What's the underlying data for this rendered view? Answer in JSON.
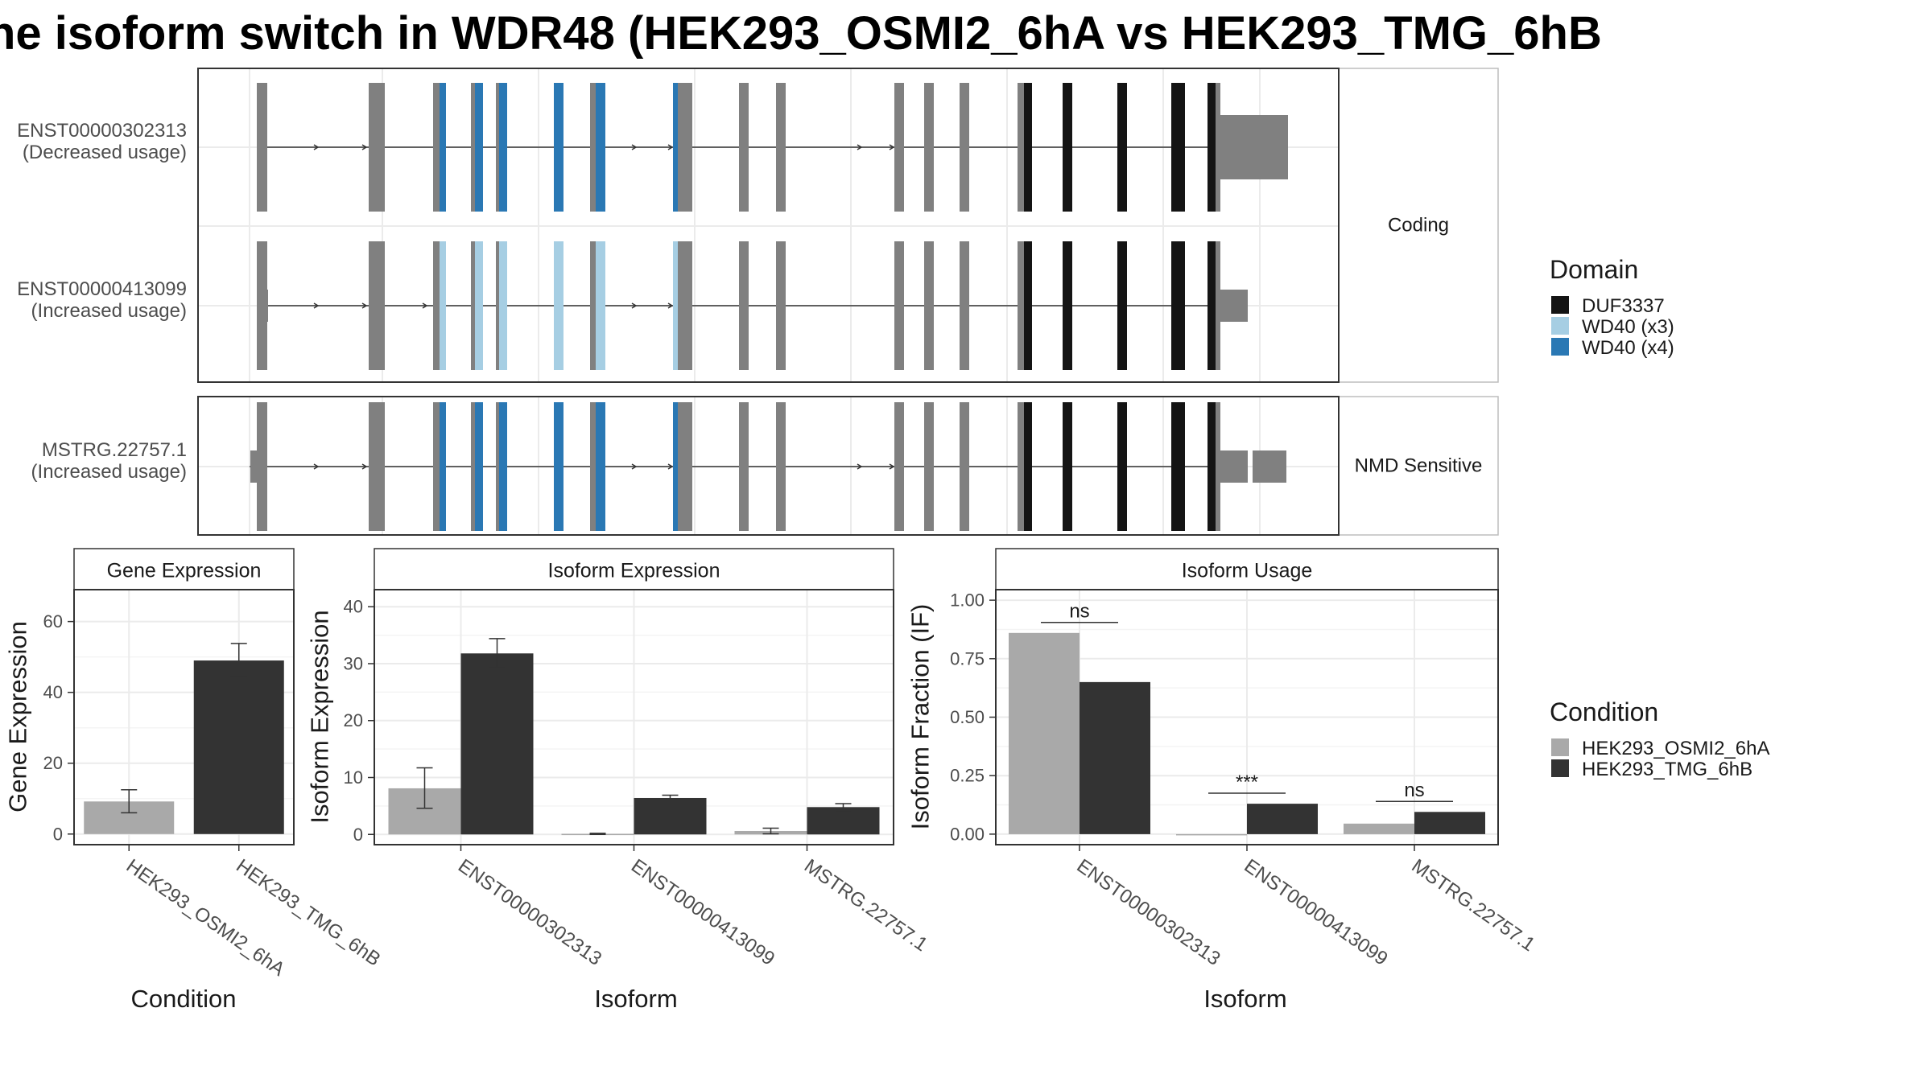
{
  "title": "he isoform switch in WDR48 (HEK293_OSMI2_6hA vs HEK293_TMG_6hB",
  "colors": {
    "utr": "#808080",
    "duf3337": "#141414",
    "wd40_x3": "#a6cee3",
    "wd40_x4": "#2a78b4",
    "cond_a": "#a9a9a9",
    "cond_b": "#333333",
    "panel_border": "#333333",
    "strip_border": "#bdbdbd",
    "grid": "#ebebeb"
  },
  "transcript_panels": [
    {
      "facet_label": "Coding",
      "tracks": [
        {
          "id": "ENST00000302313",
          "usage": "(Decreased usage)"
        },
        {
          "id": "ENST00000413099",
          "usage": "(Increased usage)"
        }
      ]
    },
    {
      "facet_label": "NMD Sensitive",
      "tracks": [
        {
          "id": "MSTRG.22757.1",
          "usage": "(Increased usage)"
        }
      ]
    }
  ],
  "domain_legend": {
    "title": "Domain",
    "items": [
      {
        "label": "DUF3337",
        "color": "#141414"
      },
      {
        "label": "WD40 (x3)",
        "color": "#a6cee3"
      },
      {
        "label": "WD40 (x4)",
        "color": "#2a78b4"
      }
    ]
  },
  "condition_legend": {
    "title": "Condition",
    "items": [
      {
        "label": "HEK293_OSMI2_6hA",
        "color": "#a9a9a9"
      },
      {
        "label": "HEK293_TMG_6hB",
        "color": "#333333"
      }
    ]
  },
  "chart_data": [
    {
      "type": "bar",
      "title": "Gene Expression",
      "xlabel": "Condition",
      "ylabel": "Gene Expression",
      "categories": [
        "HEK293_OSMI2_6hA",
        "HEK293_TMG_6hB"
      ],
      "values": [
        9.2,
        49.0
      ],
      "errors": [
        [
          6.0,
          12.5
        ],
        [
          44.5,
          53.8
        ]
      ],
      "colors": [
        "#a9a9a9",
        "#333333"
      ],
      "ylim": [
        -3,
        69
      ],
      "yticks": [
        0,
        20,
        40,
        60
      ],
      "ytick_labels": [
        "0",
        "20",
        "40",
        "60"
      ],
      "grid": true
    },
    {
      "type": "bar",
      "title": "Isoform Expression",
      "xlabel": "Isoform",
      "ylabel": "Isoform Expression",
      "categories": [
        "ENST00000302313",
        "ENST00000413099",
        "MSTRG.22757.1"
      ],
      "series": [
        {
          "name": "HEK293_OSMI2_6hA",
          "values": [
            8.1,
            0.1,
            0.6
          ],
          "errors": [
            [
              4.6,
              11.7
            ],
            [
              0.0,
              0.2
            ],
            [
              0.1,
              1.1
            ]
          ]
        },
        {
          "name": "HEK293_TMG_6hB",
          "values": [
            31.8,
            6.4,
            4.8
          ],
          "errors": [
            [
              29.3,
              34.4
            ],
            [
              6.0,
              6.9
            ],
            [
              4.2,
              5.4
            ]
          ]
        }
      ],
      "ylim": [
        -1.8,
        43
      ],
      "yticks": [
        0,
        10,
        20,
        30,
        40
      ],
      "ytick_labels": [
        "0",
        "10",
        "20",
        "30",
        "40"
      ],
      "grid": true
    },
    {
      "type": "bar",
      "title": "Isoform Usage",
      "xlabel": "Isoform",
      "ylabel": "Isoform Fraction (IF)",
      "categories": [
        "ENST00000302313",
        "ENST00000413099",
        "MSTRG.22757.1"
      ],
      "series": [
        {
          "name": "HEK293_OSMI2_6hA",
          "values": [
            0.86,
            0.0,
            0.045
          ]
        },
        {
          "name": "HEK293_TMG_6hB",
          "values": [
            0.65,
            0.13,
            0.095
          ]
        }
      ],
      "significance": [
        {
          "label": "ns",
          "y": 0.905
        },
        {
          "label": "***",
          "y": 0.175
        },
        {
          "label": "ns",
          "y": 0.14
        }
      ],
      "ylim": [
        -0.045,
        1.045
      ],
      "yticks": [
        0,
        0.25,
        0.5,
        0.75,
        1
      ],
      "ytick_labels": [
        "0.00",
        "0.25",
        "0.50",
        "0.75",
        "1.00"
      ],
      "grid": true
    }
  ]
}
